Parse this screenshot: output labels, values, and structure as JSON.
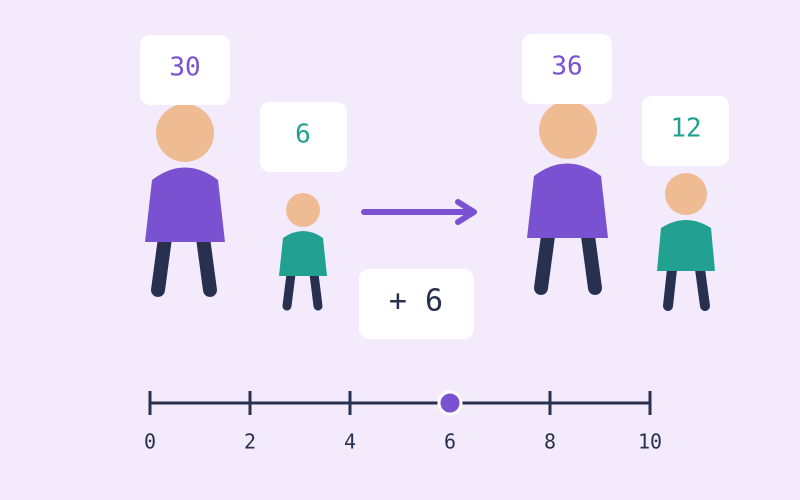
{
  "before": {
    "adult": "30",
    "child": "6"
  },
  "operation": "+ 6",
  "after": {
    "adult": "36",
    "child": "12"
  },
  "slider": {
    "range": [
      0,
      10
    ],
    "ticks": [
      0,
      2,
      4,
      6,
      8,
      10
    ],
    "value": 6
  }
}
